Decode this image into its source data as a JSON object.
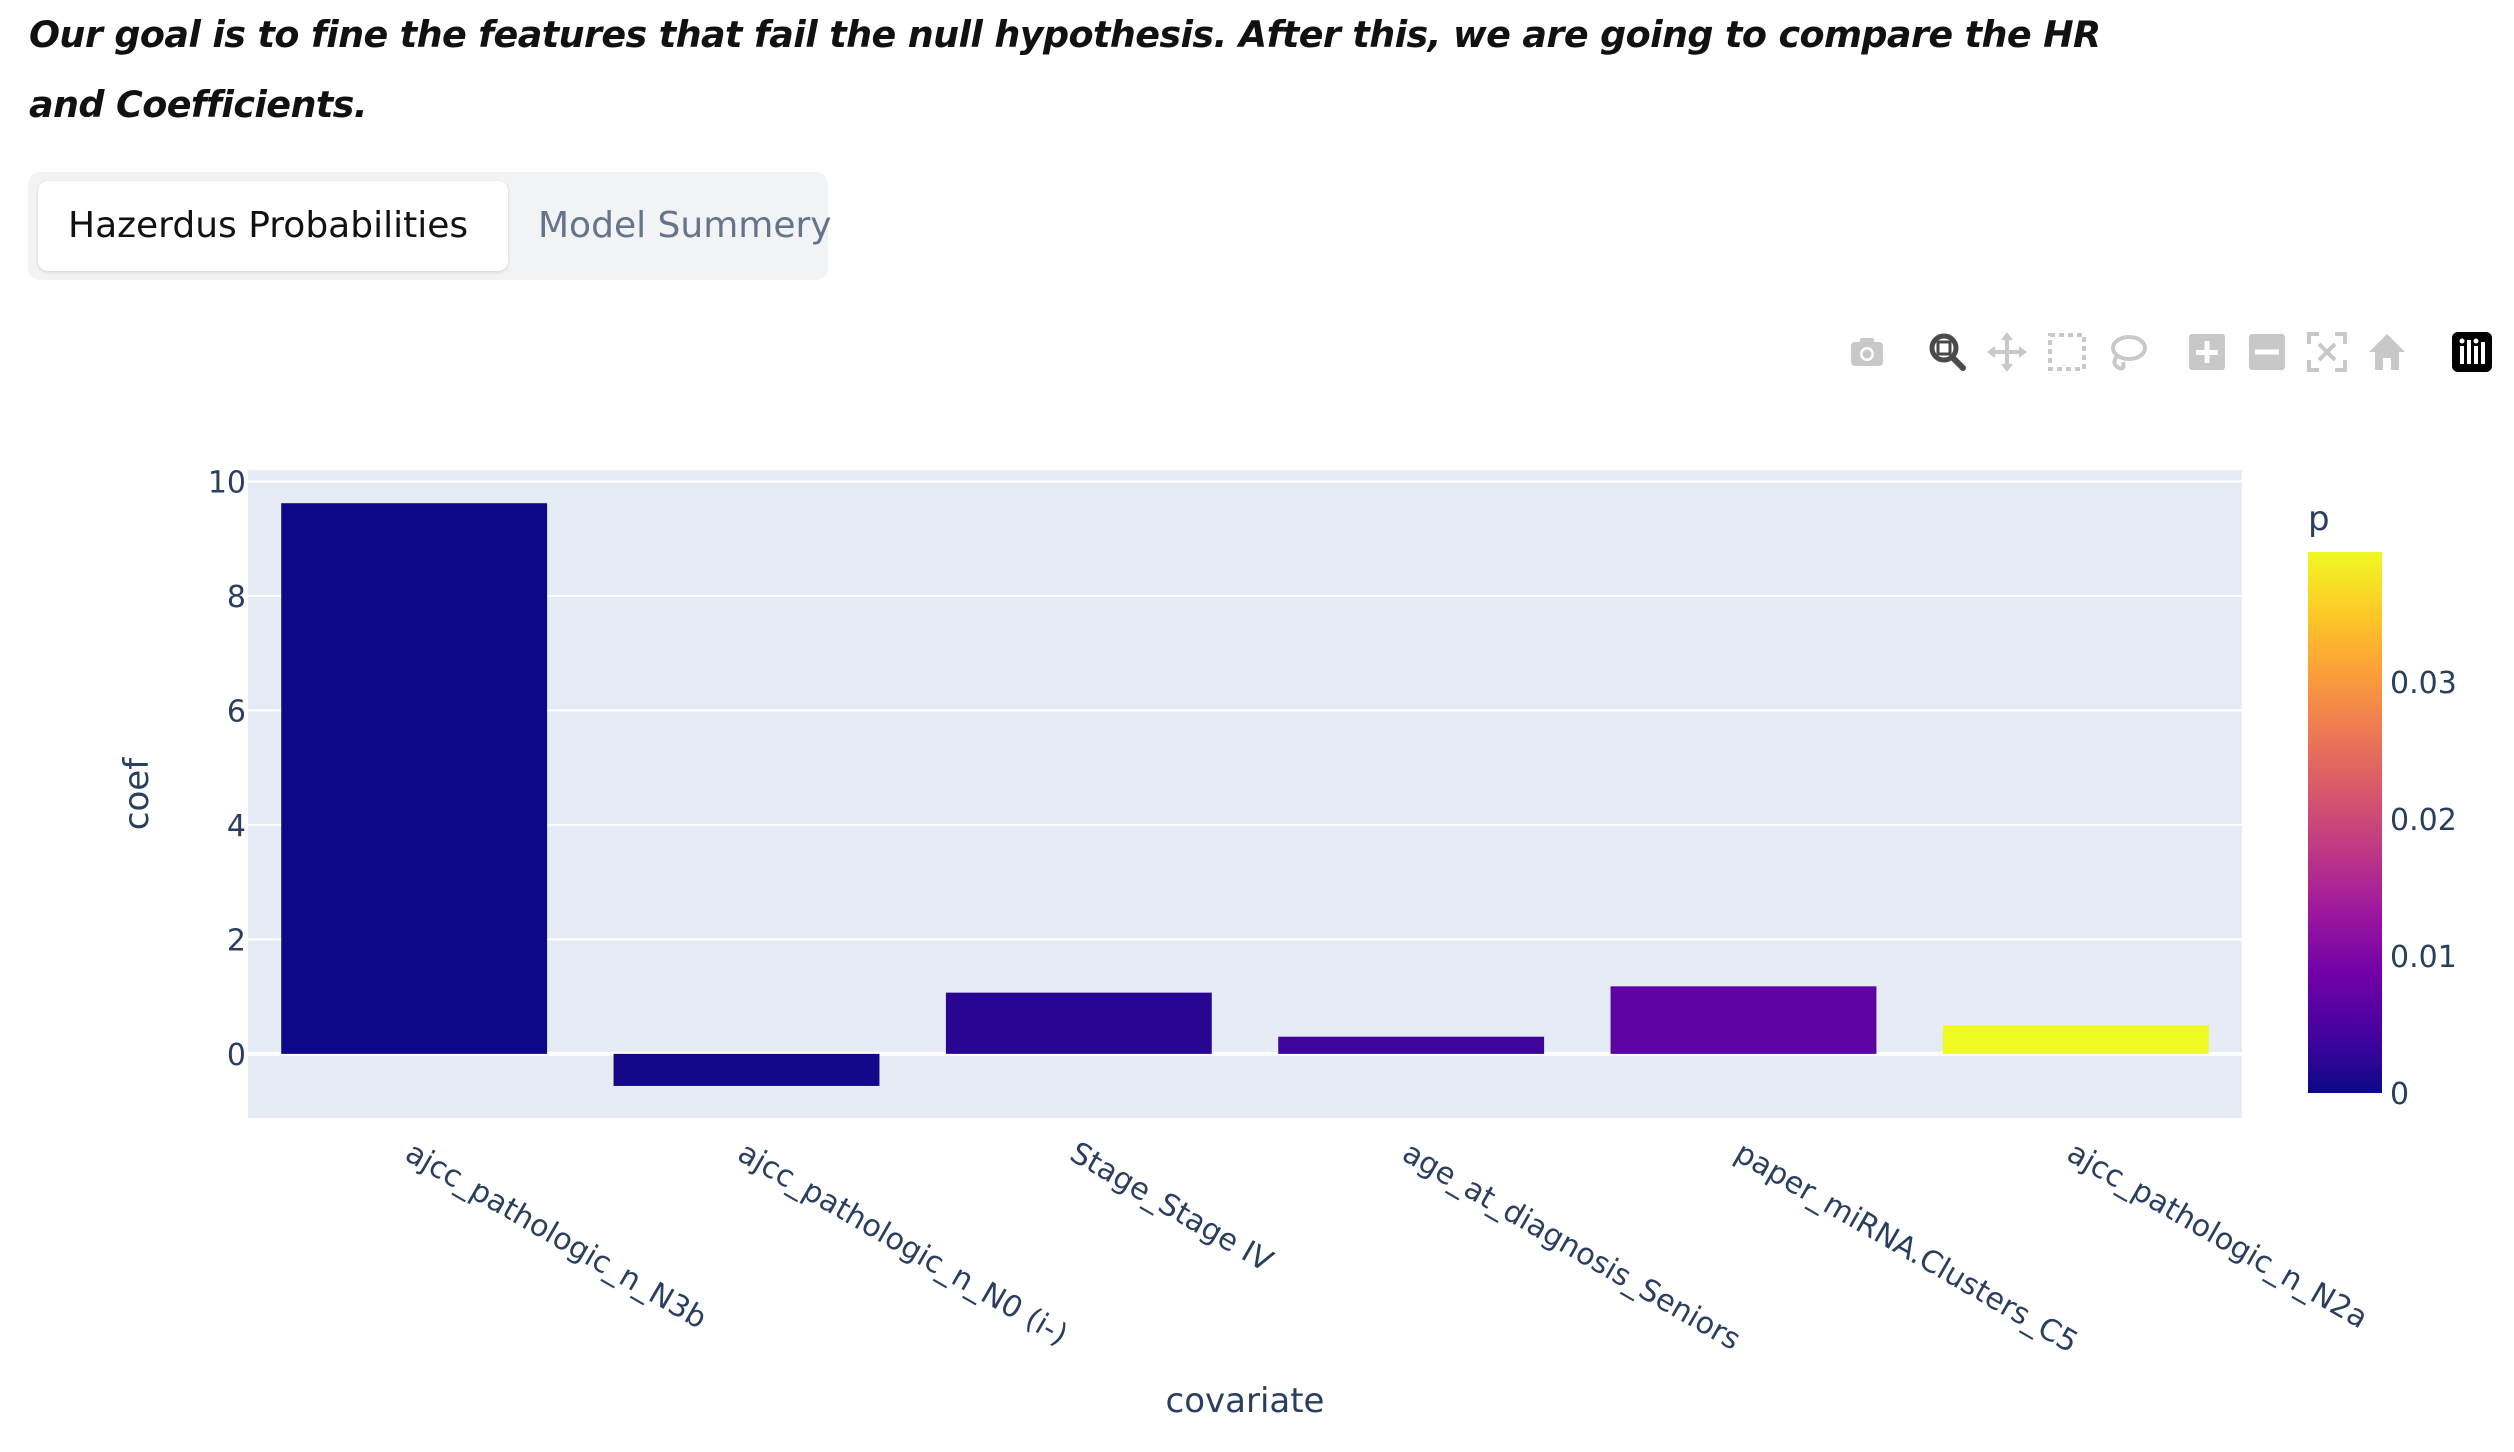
{
  "intro": {
    "line1": "Our goal is to fine the features that fail the null hypothesis. After this, we are going to compare the HR",
    "line2": "and Coefficients."
  },
  "tabs": [
    {
      "label": "Hazerdus Probabilities",
      "active": true
    },
    {
      "label": "Model Summery",
      "active": false
    }
  ],
  "modebar": {
    "icons": [
      "camera-icon",
      "zoom-icon",
      "pan-icon",
      "box-select-icon",
      "lasso-select-icon",
      "zoom-in-icon",
      "zoom-out-icon",
      "autoscale-icon",
      "reset-axes-icon",
      "plotly-logo-icon"
    ],
    "color": "#c8c8c8"
  },
  "chart_data": {
    "type": "bar",
    "categories": [
      "ajcc_pathologic_n_N3b",
      "ajcc_pathologic_n_N0 (i-)",
      "Stage_Stage IV",
      "age_at_diagnosis_Seniors",
      "paper_miRNA.Clusters_C5",
      "ajcc_pathologic_n_N2a"
    ],
    "values": [
      9.62,
      -0.56,
      1.07,
      0.3,
      1.18,
      0.5
    ],
    "p": [
      0.0,
      0.0004,
      0.0021,
      0.0038,
      0.0068,
      0.0395
    ],
    "xlabel": "covariate",
    "ylabel": "coef",
    "ylim": [
      -1.12,
      10.2
    ],
    "yticks": [
      0,
      2,
      4,
      6,
      8,
      10
    ],
    "grid": true,
    "colorbar": {
      "title": "p",
      "range": [
        0,
        0.0395
      ],
      "ticks": [
        0,
        0.01,
        0.02,
        0.03
      ],
      "tick_labels": [
        "0",
        "0.01",
        "0.02",
        "0.03"
      ],
      "colorscale": [
        "#0d0887",
        "#46039f",
        "#7201a8",
        "#9c179e",
        "#bd3786",
        "#d8576b",
        "#ed7953",
        "#fb9f3a",
        "#fdca26",
        "#f0f921"
      ]
    },
    "plot_bgcolor": "#e5ecf6"
  }
}
